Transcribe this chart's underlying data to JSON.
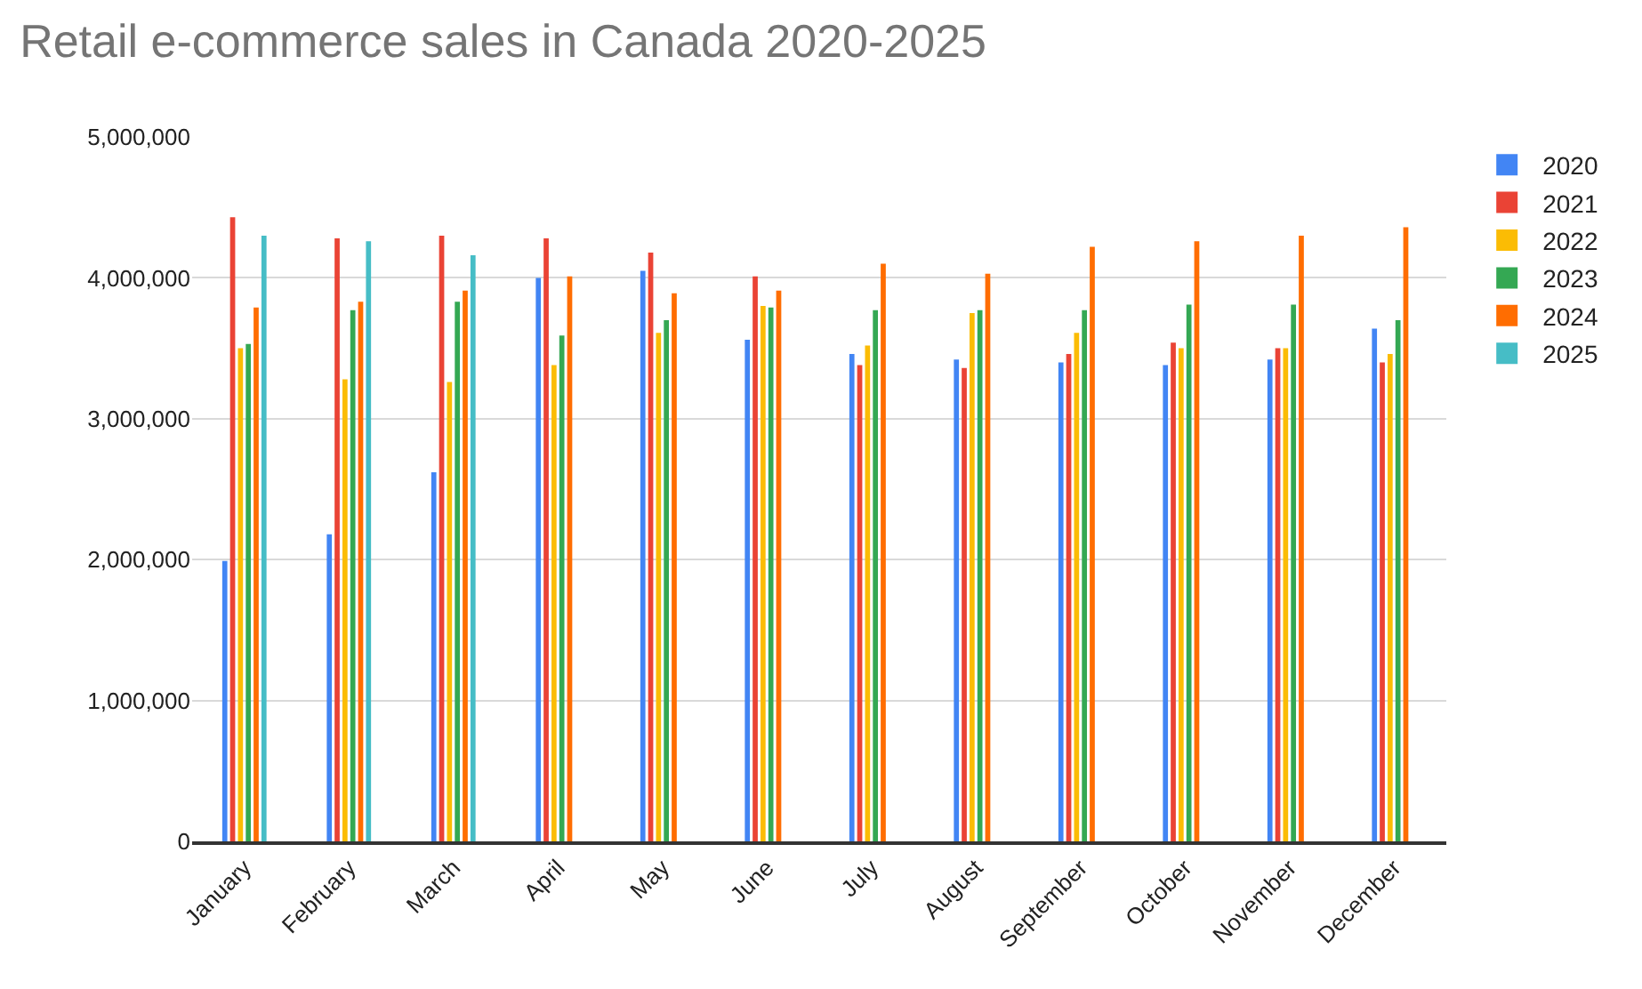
{
  "chart_data": {
    "type": "bar",
    "title": "Retail e-commerce sales in Canada 2020-2025",
    "categories": [
      "January",
      "February",
      "March",
      "April",
      "May",
      "June",
      "July",
      "August",
      "September",
      "October",
      "November",
      "December"
    ],
    "series": [
      {
        "name": "2020",
        "color": "#4285f4",
        "values": [
          1990000,
          2180000,
          2620000,
          4000000,
          4050000,
          3560000,
          3460000,
          3420000,
          3400000,
          3380000,
          3420000,
          3640000
        ]
      },
      {
        "name": "2021",
        "color": "#ea4335",
        "values": [
          4430000,
          4280000,
          4300000,
          4280000,
          4180000,
          4010000,
          3380000,
          3360000,
          3460000,
          3540000,
          3500000,
          3400000
        ]
      },
      {
        "name": "2022",
        "color": "#fbbc04",
        "values": [
          3500000,
          3280000,
          3260000,
          3380000,
          3610000,
          3800000,
          3520000,
          3750000,
          3610000,
          3500000,
          3500000,
          3460000
        ]
      },
      {
        "name": "2023",
        "color": "#34a853",
        "values": [
          3530000,
          3770000,
          3830000,
          3590000,
          3700000,
          3790000,
          3770000,
          3770000,
          3770000,
          3810000,
          3810000,
          3700000
        ]
      },
      {
        "name": "2024",
        "color": "#ff6d01",
        "values": [
          3790000,
          3830000,
          3910000,
          4010000,
          3890000,
          3910000,
          4100000,
          4030000,
          4220000,
          4260000,
          4300000,
          4360000
        ]
      },
      {
        "name": "2025",
        "color": "#46bdc6",
        "values": [
          4300000,
          4260000,
          4160000,
          null,
          null,
          null,
          null,
          null,
          null,
          null,
          null,
          null
        ]
      }
    ],
    "ylim": [
      0,
      5000000
    ],
    "yticks": [
      {
        "value": 0,
        "label": "0"
      },
      {
        "value": 1000000,
        "label": "1,000,000"
      },
      {
        "value": 2000000,
        "label": "2,000,000"
      },
      {
        "value": 3000000,
        "label": "3,000,000"
      },
      {
        "value": 4000000,
        "label": "4,000,000"
      },
      {
        "value": 5000000,
        "label": "5,000,000"
      }
    ],
    "grid": "y",
    "legend": "top right"
  }
}
